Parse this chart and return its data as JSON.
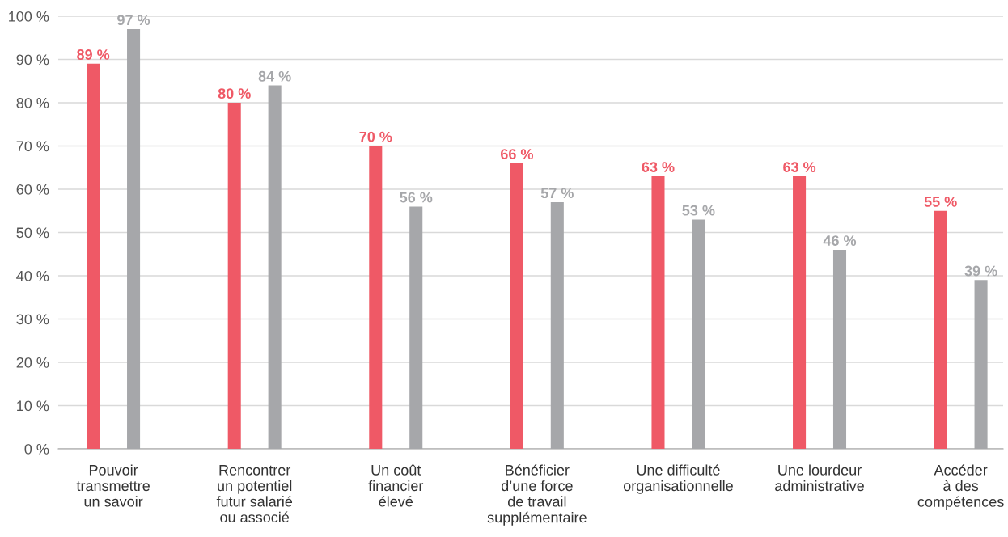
{
  "chart_data": {
    "type": "bar",
    "categories": [
      "Pouvoir\ntransmettre\nun savoir",
      "Rencontrer\nun potentiel\nfutur salarié\nou associé",
      "Un coût\nfinancier\nélevé",
      "Bénéficier\nd’une force\nde travail\nsupplémentaire",
      "Une difficulté\norganisationnelle",
      "Une lourdeur\nadministrative",
      "Accéder\nà des\ncompétences"
    ],
    "series": [
      {
        "color": "#ef5966",
        "values": [
          89,
          80,
          70,
          66,
          63,
          63,
          55
        ],
        "value_labels": [
          "89 %",
          "80 %",
          "70 %",
          "66 %",
          "63 %",
          "63 %",
          "55 %"
        ]
      },
      {
        "color": "#a6a7aa",
        "values": [
          97,
          84,
          56,
          57,
          53,
          46,
          39
        ],
        "value_labels": [
          "97 %",
          "84 %",
          "56 %",
          "57 %",
          "53 %",
          "46 %",
          "39 %"
        ]
      }
    ],
    "ylim": [
      0,
      100
    ],
    "yticks": [
      {
        "value": 0,
        "label": "0 %"
      },
      {
        "value": 10,
        "label": "10 %"
      },
      {
        "value": 20,
        "label": "20 %"
      },
      {
        "value": 30,
        "label": "30 %"
      },
      {
        "value": 40,
        "label": "40 %"
      },
      {
        "value": 50,
        "label": "50 %"
      },
      {
        "value": 60,
        "label": "60 %"
      },
      {
        "value": 70,
        "label": "70 %"
      },
      {
        "value": 80,
        "label": "80 %"
      },
      {
        "value": 90,
        "label": "90 %"
      },
      {
        "value": 100,
        "label": "100 %"
      }
    ],
    "grid": "y"
  }
}
